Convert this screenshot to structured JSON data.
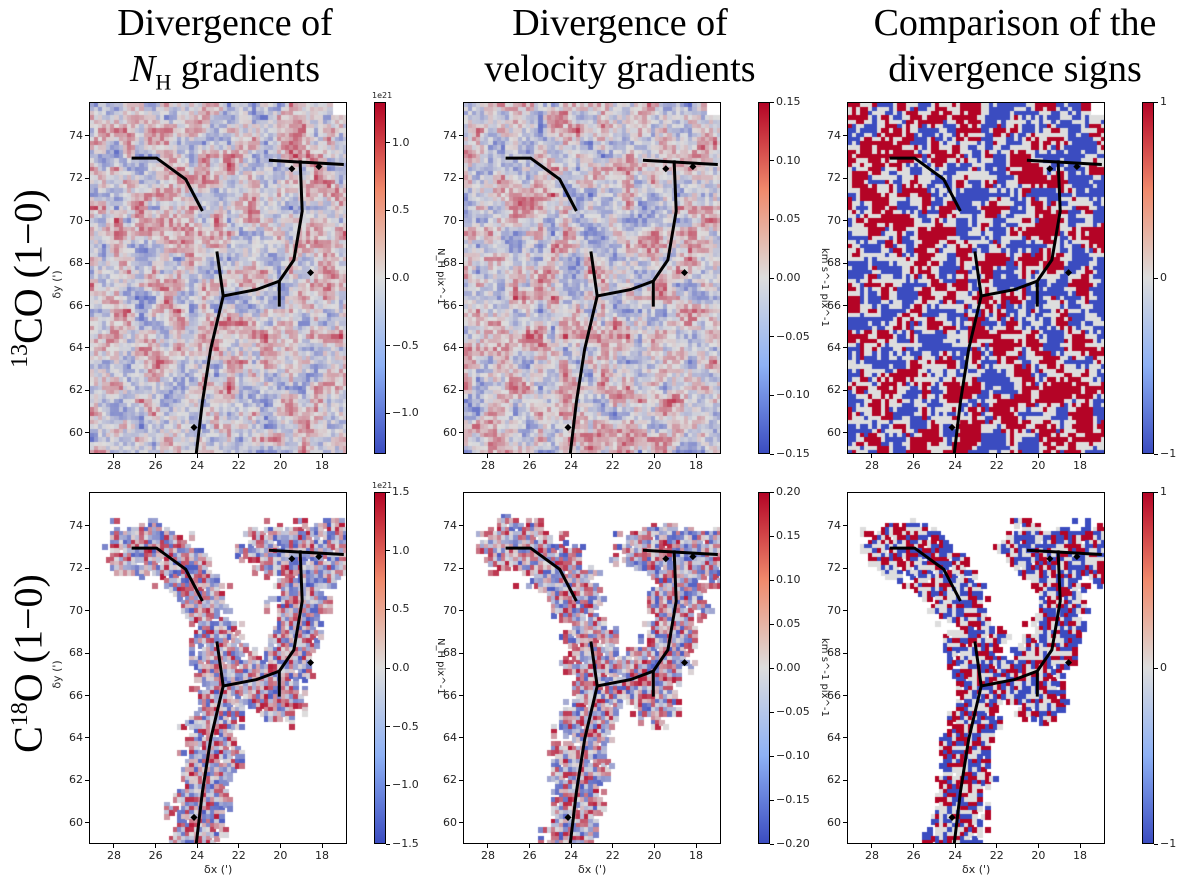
{
  "column_titles": [
    {
      "line1": "Divergence of",
      "line2_italic": "N",
      "line2_sub": "H",
      "line2_rest": " gradients"
    },
    {
      "line1": "Divergence of",
      "line2_italic": "",
      "line2_sub": "",
      "line2_rest": "velocity gradients"
    },
    {
      "line1": "Comparison of the",
      "line2_italic": "",
      "line2_sub": "",
      "line2_rest": "divergence signs"
    }
  ],
  "row_titles": [
    {
      "sup": "13",
      "text": "CO (1−0)",
      "prefix": ""
    },
    {
      "sup": "18",
      "text": "O (1−0)",
      "prefix": "C"
    }
  ],
  "axes": {
    "xlabel": "δx (')",
    "ylabel": "δy (')",
    "xticks": [
      28,
      26,
      24,
      22,
      20,
      18
    ],
    "yticks": [
      60,
      62,
      64,
      66,
      68,
      70,
      72,
      74
    ],
    "xlim": [
      29.2,
      16.8
    ],
    "ylim": [
      59.0,
      75.6
    ]
  },
  "colors": {
    "low": "#3b4cc0",
    "mid": "#dddddd",
    "high": "#b40426"
  },
  "chart_data": [
    {
      "type": "heatmap",
      "row": "13CO (1-0)",
      "title": "Divergence of N_H gradients",
      "colorbar_label": "N_H pix^-1",
      "colorbar_exponent": "1e21",
      "vlim": [
        -1.3,
        1.3
      ],
      "colorbar_ticks": [
        "1.0",
        "0.5",
        "0.0",
        "−0.5",
        "−1.0"
      ],
      "tick_values": [
        1.0,
        0.5,
        0.0,
        -0.5,
        -1.0
      ]
    },
    {
      "type": "heatmap",
      "row": "13CO (1-0)",
      "title": "Divergence of velocity gradients",
      "colorbar_label": "km s^-1 pix^-1",
      "colorbar_exponent": "",
      "vlim": [
        -0.15,
        0.15
      ],
      "colorbar_ticks": [
        "0.15",
        "0.10",
        "0.05",
        "0.00",
        "−0.05",
        "−0.10",
        "−0.15"
      ],
      "tick_values": [
        0.15,
        0.1,
        0.05,
        0.0,
        -0.05,
        -0.1,
        -0.15
      ]
    },
    {
      "type": "heatmap",
      "row": "13CO (1-0)",
      "title": "Comparison of the divergence signs",
      "colorbar_label": "",
      "colorbar_exponent": "",
      "vlim": [
        -1,
        1
      ],
      "colorbar_ticks": [
        "1",
        "0",
        "−1"
      ],
      "tick_values": [
        1,
        0,
        -1
      ]
    },
    {
      "type": "heatmap",
      "row": "C18O (1-0)",
      "title": "Divergence of N_H gradients",
      "colorbar_label": "N_H pix^-1",
      "colorbar_exponent": "1e21",
      "vlim": [
        -1.5,
        1.5
      ],
      "colorbar_ticks": [
        "1.5",
        "1.0",
        "0.5",
        "0.0",
        "−0.5",
        "−1.0",
        "−1.5"
      ],
      "tick_values": [
        1.5,
        1.0,
        0.5,
        0.0,
        -0.5,
        -1.0,
        -1.5
      ]
    },
    {
      "type": "heatmap",
      "row": "C18O (1-0)",
      "title": "Divergence of velocity gradients",
      "colorbar_label": "km s^-1 pix^-1",
      "colorbar_exponent": "",
      "vlim": [
        -0.2,
        0.2
      ],
      "colorbar_ticks": [
        "0.20",
        "0.15",
        "0.10",
        "0.05",
        "0.00",
        "−0.05",
        "−0.10",
        "−0.15",
        "−0.20"
      ],
      "tick_values": [
        0.2,
        0.15,
        0.1,
        0.05,
        0.0,
        -0.05,
        -0.1,
        -0.15,
        -0.2
      ]
    },
    {
      "type": "heatmap",
      "row": "C18O (1-0)",
      "title": "Comparison of the divergence signs",
      "colorbar_label": "",
      "colorbar_exponent": "",
      "vlim": [
        -1,
        1
      ],
      "colorbar_ticks": [
        "1",
        "0",
        "−1"
      ],
      "tick_values": [
        1,
        0,
        -1
      ]
    }
  ],
  "filament_skeleton": [
    [
      [
        27.2,
        73.0
      ],
      [
        26.0,
        73.0
      ],
      [
        24.6,
        72.0
      ],
      [
        23.8,
        70.5
      ]
    ],
    [
      [
        20.6,
        72.9
      ],
      [
        17.0,
        72.7
      ]
    ],
    [
      [
        19.1,
        72.9
      ],
      [
        19.0,
        70.5
      ],
      [
        19.4,
        68.2
      ],
      [
        20.1,
        67.2
      ],
      [
        21.2,
        66.8
      ],
      [
        22.8,
        66.5
      ],
      [
        23.1,
        68.6
      ]
    ],
    [
      [
        22.8,
        66.5
      ],
      [
        23.4,
        64.0
      ],
      [
        23.8,
        61.5
      ],
      [
        24.1,
        59.0
      ]
    ],
    [
      [
        20.1,
        67.2
      ],
      [
        20.1,
        66.0
      ]
    ]
  ],
  "markers": [
    [
      24.2,
      60.3
    ],
    [
      18.6,
      67.6
    ],
    [
      18.2,
      72.6
    ],
    [
      19.5,
      72.5
    ]
  ]
}
